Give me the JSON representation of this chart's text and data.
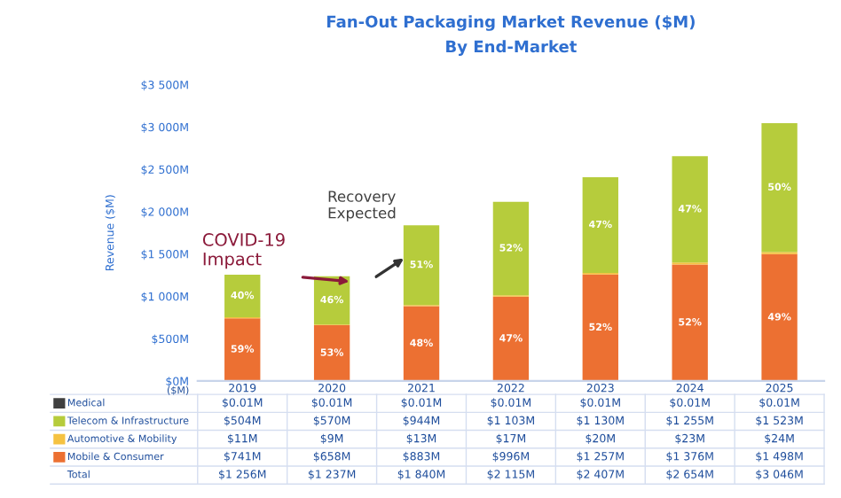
{
  "chart_data": {
    "type": "bar",
    "stacked": true,
    "title": "Fan-Out Packaging Market Revenue ($M)",
    "subtitle": "By End-Market",
    "ylabel": "Revenue ($M)",
    "legend_title": "($M)",
    "categories": [
      "2019",
      "2020",
      "2021",
      "2022",
      "2023",
      "2024",
      "2025"
    ],
    "series": [
      {
        "name": "Mobile & Consumer",
        "color": "#ec7032",
        "values": [
          741,
          658,
          883,
          996,
          1257,
          1376,
          1498
        ]
      },
      {
        "name": "Automotive & Mobility",
        "color": "#f5c242",
        "values": [
          11,
          9,
          13,
          17,
          20,
          23,
          24
        ]
      },
      {
        "name": "Telecom & Infrastructure",
        "color": "#b6cc3c",
        "values": [
          504,
          570,
          944,
          1103,
          1130,
          1255,
          1523
        ]
      },
      {
        "name": "Medical",
        "color": "#404040",
        "values": [
          0.01,
          0.01,
          0.01,
          0.01,
          0.01,
          0.01,
          0.01
        ]
      }
    ],
    "ylim": [
      0,
      3500
    ],
    "yticks": [
      {
        "value": 0,
        "label": "$0M"
      },
      {
        "value": 500,
        "label": "$500M"
      },
      {
        "value": 1000,
        "label": "$1 000M"
      },
      {
        "value": 1500,
        "label": "$1 500M"
      },
      {
        "value": 2000,
        "label": "$2 000M"
      },
      {
        "value": 2500,
        "label": "$2 500M"
      },
      {
        "value": 3000,
        "label": "$3 000M"
      },
      {
        "value": 3500,
        "label": "$3 500M"
      }
    ],
    "grid": false,
    "legend": "bottom",
    "annotations": [
      "COVID-19\nImpact",
      "Recovery\nExpected",
      "59%",
      "53%",
      "48%",
      "47%",
      "52%",
      "52%",
      "49%",
      "40%",
      "46%",
      "51%",
      "52%",
      "47%",
      "47%",
      "50%",
      "$0.01M",
      "$0.01M",
      "$0.01M",
      "$0.01M",
      "$0.01M",
      "$0.01M",
      "$0.01M",
      "$504M",
      "$570M",
      "$944M",
      "$1 103M",
      "$1 130M",
      "$1 255M",
      "$1 523M",
      "$11M",
      "$9M",
      "$13M",
      "$17M",
      "$20M",
      "$23M",
      "$24M",
      "$741M",
      "$658M",
      "$883M",
      "$996M",
      "$1 257M",
      "$1 376M",
      "$1 498M",
      "Total",
      "$1 256M",
      "$1 237M",
      "$1 840M",
      "$2 115M",
      "$2 407M",
      "$2 654M",
      "$3 046M"
    ]
  }
}
